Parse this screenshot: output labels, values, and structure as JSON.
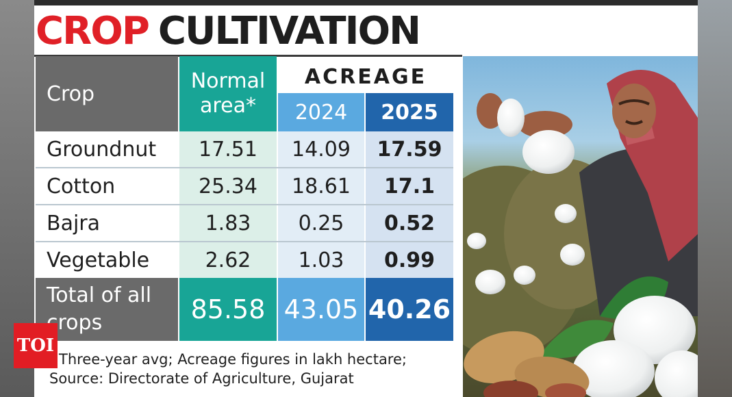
{
  "title": {
    "word1": "CROP",
    "word2": "CULTIVATION"
  },
  "chart_data": {
    "type": "table",
    "headers": {
      "crop": "Crop",
      "normal_area": [
        "Normal",
        "area*"
      ],
      "acreage": "ACREAGE",
      "year_2024": "2024",
      "year_2025": "2025"
    },
    "rows": [
      {
        "crop": "Groundnut",
        "normal": "17.51",
        "y2024": "14.09",
        "y2025": "17.59"
      },
      {
        "crop": "Cotton",
        "normal": "25.34",
        "y2024": "18.61",
        "y2025": "17.1"
      },
      {
        "crop": "Bajra",
        "normal": "1.83",
        "y2024": "0.25",
        "y2025": "0.52"
      },
      {
        "crop": "Vegetable",
        "normal": "2.62",
        "y2024": "1.03",
        "y2025": "0.99"
      }
    ],
    "total": {
      "crop": [
        "Total of all",
        "crops"
      ],
      "normal": "85.58",
      "y2024": "43.05",
      "y2025": "40.26"
    }
  },
  "footnote": {
    "line1": "Three-year avg; Acreage figures in lakh hectare;",
    "line2": "Source: Directorate of Agriculture, Gujarat"
  },
  "logo": {
    "text": "TOI"
  },
  "colors": {
    "title_red": "#e02027",
    "crop_col": "#6a6a6a",
    "normal_col": "#18a596",
    "col_2024": "#5aa9e0",
    "col_2025": "#2165ab"
  }
}
